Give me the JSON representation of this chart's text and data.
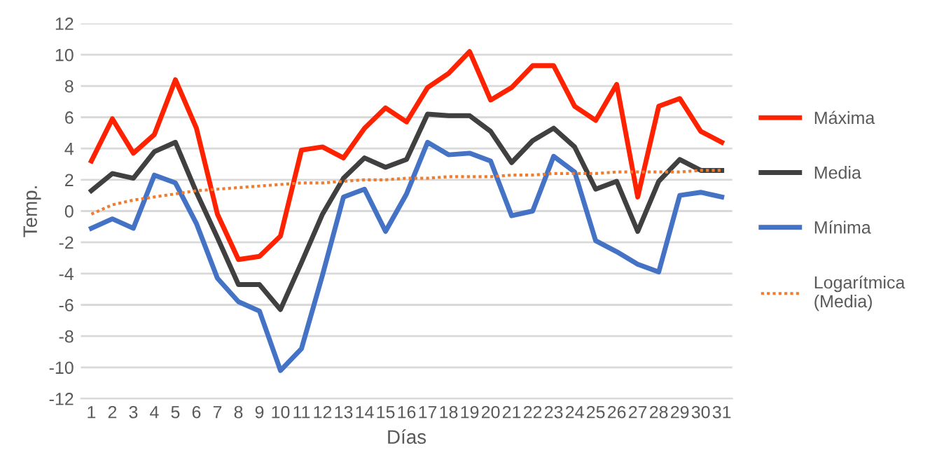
{
  "chart_data": {
    "type": "line",
    "xlabel": "Días",
    "ylabel": "Temp.",
    "categories": [
      "1",
      "2",
      "3",
      "4",
      "5",
      "6",
      "7",
      "8",
      "9",
      "10",
      "11",
      "12",
      "13",
      "14",
      "15",
      "16",
      "17",
      "18",
      "19",
      "20",
      "21",
      "22",
      "23",
      "24",
      "25",
      "26",
      "27",
      "28",
      "29",
      "30",
      "31"
    ],
    "ylim": [
      -12,
      12
    ],
    "yticks": [
      -12,
      -10,
      -8,
      -6,
      -4,
      -2,
      0,
      2,
      4,
      6,
      8,
      10,
      12
    ],
    "grid": "y",
    "legend": "right",
    "line_style": "solid",
    "marker": "none",
    "series": [
      {
        "name": "Máxima",
        "color": "#ff2200",
        "values": [
          3.2,
          5.9,
          3.7,
          4.9,
          8.4,
          5.3,
          -0.2,
          -3.1,
          -2.9,
          -1.6,
          3.9,
          4.1,
          3.4,
          5.3,
          6.6,
          5.7,
          7.9,
          8.8,
          10.2,
          7.1,
          7.9,
          9.3,
          9.3,
          6.7,
          5.8,
          8.1,
          0.9,
          6.7,
          7.2,
          5.1,
          4.4
        ]
      },
      {
        "name": "Media",
        "color": "#404040",
        "values": [
          1.3,
          2.4,
          2.1,
          3.8,
          4.4,
          1.2,
          -1.7,
          -4.7,
          -4.7,
          -6.3,
          -3.3,
          -0.2,
          2.1,
          3.4,
          2.8,
          3.3,
          6.2,
          6.1,
          6.1,
          5.1,
          3.1,
          4.5,
          5.3,
          4.1,
          1.4,
          1.9,
          -1.3,
          1.9,
          3.3,
          2.6,
          2.6
        ]
      },
      {
        "name": "Mínima",
        "color": "#4472c4",
        "values": [
          -1.1,
          -0.5,
          -1.1,
          2.3,
          1.8,
          -0.8,
          -4.3,
          -5.8,
          -6.4,
          -10.2,
          -8.8,
          -4.1,
          0.9,
          1.4,
          -1.3,
          1.1,
          4.4,
          3.6,
          3.7,
          3.2,
          -0.3,
          0.0,
          3.5,
          2.5,
          -1.9,
          -2.6,
          -3.4,
          -3.9,
          1.0,
          1.2,
          0.9
        ]
      },
      {
        "name": "Logarítmica (Media)",
        "color": "#ed7d31",
        "line_style": "dotted",
        "values": [
          -0.2,
          0.4,
          0.7,
          0.9,
          1.1,
          1.3,
          1.4,
          1.5,
          1.6,
          1.7,
          1.8,
          1.8,
          1.9,
          2.0,
          2.0,
          2.1,
          2.1,
          2.2,
          2.2,
          2.2,
          2.3,
          2.3,
          2.4,
          2.4,
          2.4,
          2.5,
          2.5,
          2.5,
          2.5,
          2.6,
          2.6
        ]
      }
    ]
  }
}
